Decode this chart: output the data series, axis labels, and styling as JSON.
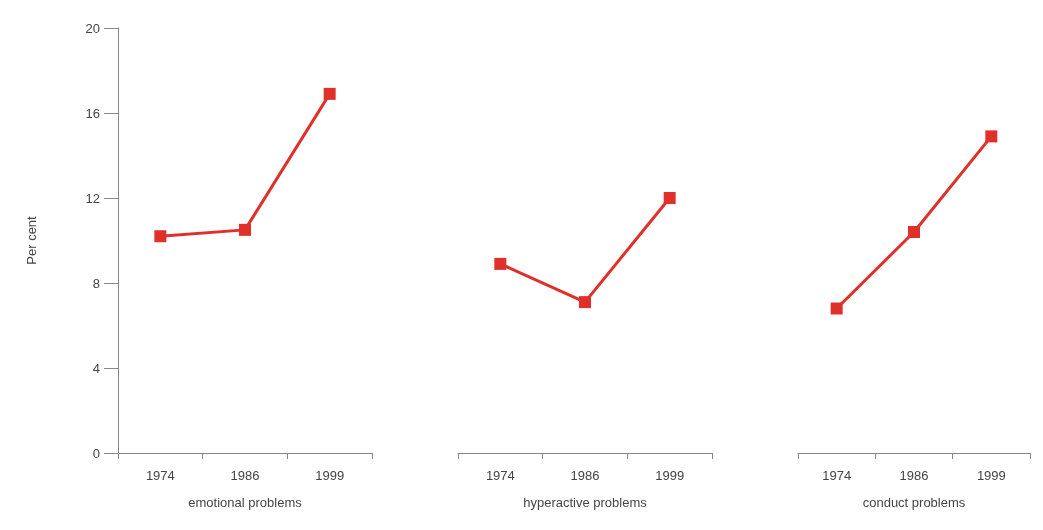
{
  "chart_data": [
    {
      "type": "line",
      "categories": [
        "1974",
        "1986",
        "1999"
      ],
      "xlabel": "emotional problems",
      "ylabel": "Per cent",
      "ylim": [
        0,
        20
      ],
      "yticks": [
        0,
        4,
        8,
        12,
        16,
        20
      ],
      "grid": false,
      "legend": false,
      "marker": "square",
      "line_style": "solid",
      "series": [
        {
          "color": "#e0302a",
          "values": [
            10.2,
            10.5,
            16.9
          ]
        }
      ]
    },
    {
      "type": "line",
      "categories": [
        "1974",
        "1986",
        "1999"
      ],
      "xlabel": "hyperactive problems",
      "ylim": [
        0,
        20
      ],
      "tick_labels": "x",
      "grid": false,
      "legend": false,
      "marker": "square",
      "line_style": "solid",
      "series": [
        {
          "color": "#e0302a",
          "values": [
            8.9,
            7.1,
            12.0
          ]
        }
      ]
    },
    {
      "type": "line",
      "categories": [
        "1974",
        "1986",
        "1999"
      ],
      "xlabel": "conduct problems",
      "ylim": [
        0,
        20
      ],
      "tick_labels": "x",
      "grid": false,
      "legend": false,
      "marker": "square",
      "line_style": "solid",
      "series": [
        {
          "color": "#e0302a",
          "values": [
            6.8,
            10.4,
            14.9
          ]
        }
      ]
    }
  ]
}
